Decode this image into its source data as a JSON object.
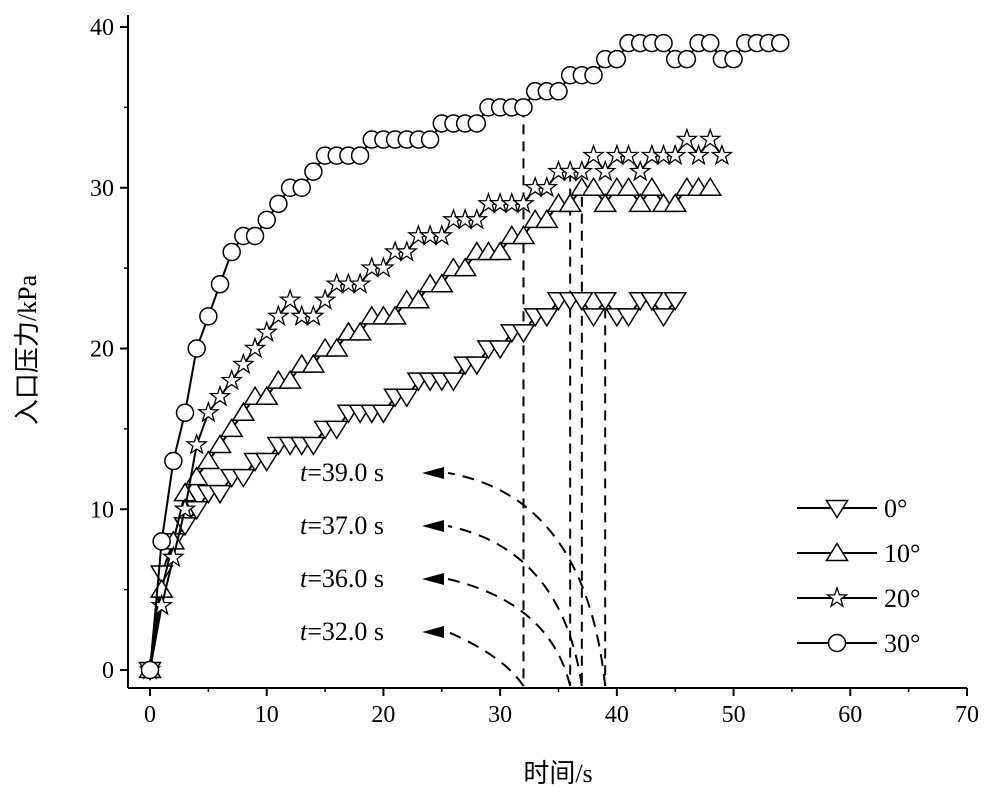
{
  "chart_data": {
    "type": "line",
    "xlabel": "时间/s",
    "ylabel": "入口压力/kPa",
    "xlim": [
      0,
      70
    ],
    "ylim": [
      0,
      40
    ],
    "xticks": [
      0,
      10,
      20,
      30,
      40,
      50,
      60,
      70
    ],
    "yticks": [
      0,
      10,
      20,
      30,
      40
    ],
    "grid": false,
    "legend_placement": "bottom-right",
    "series": [
      {
        "name": "0°",
        "marker": "triangle-down",
        "values": [
          0,
          6,
          8,
          9,
          10,
          11,
          11,
          12,
          12,
          13,
          13,
          14,
          14,
          14,
          14,
          15,
          15,
          16,
          16,
          16,
          16,
          17,
          17,
          18,
          18,
          18,
          18,
          19,
          19,
          20,
          20,
          21,
          21,
          22,
          22,
          23,
          23,
          23,
          22,
          23,
          22,
          22,
          23,
          23,
          22,
          23
        ]
      },
      {
        "name": "10°",
        "marker": "triangle-up",
        "values": [
          0,
          5,
          8,
          11,
          12,
          13,
          14,
          15,
          16,
          17,
          17,
          18,
          18,
          19,
          19,
          20,
          20,
          21,
          21,
          22,
          22,
          22,
          23,
          23,
          24,
          24,
          25,
          25,
          26,
          26,
          26,
          27,
          27,
          28,
          28,
          29,
          29,
          30,
          30,
          29,
          30,
          30,
          29,
          30,
          29,
          29,
          30,
          30,
          30
        ]
      },
      {
        "name": "20°",
        "marker": "star",
        "values": [
          0,
          4,
          7,
          10,
          14,
          16,
          17,
          18,
          19,
          20,
          21,
          22,
          23,
          22,
          22,
          23,
          24,
          24,
          24,
          25,
          25,
          26,
          26,
          27,
          27,
          27,
          28,
          28,
          28,
          29,
          29,
          29,
          29,
          30,
          30,
          31,
          31,
          31,
          32,
          31,
          32,
          32,
          31,
          32,
          32,
          32,
          33,
          32,
          33,
          32
        ]
      },
      {
        "name": "30°",
        "marker": "circle",
        "values": [
          0,
          8,
          13,
          16,
          20,
          22,
          24,
          26,
          27,
          27,
          28,
          29,
          30,
          30,
          31,
          32,
          32,
          32,
          32,
          33,
          33,
          33,
          33,
          33,
          33,
          34,
          34,
          34,
          34,
          35,
          35,
          35,
          35,
          36,
          36,
          36,
          37,
          37,
          37,
          38,
          38,
          39,
          39,
          39,
          39,
          38,
          38,
          39,
          39,
          38,
          38,
          39,
          39,
          39,
          39
        ]
      }
    ],
    "annotations": [
      {
        "label": "t=39.0 s",
        "t_italic": "t",
        "rest": "=39.0 s",
        "x": 39,
        "y_top": 22.5
      },
      {
        "label": "t=37.0 s",
        "t_italic": "t",
        "rest": "=37.0 s",
        "x": 37,
        "y_top": 30.5
      },
      {
        "label": "t=36.0 s",
        "t_italic": "t",
        "rest": "=36.0 s",
        "x": 36,
        "y_top": 31
      },
      {
        "label": "t=32.0 s",
        "t_italic": "t",
        "rest": "=32.0 s",
        "x": 32,
        "y_top": 35
      }
    ]
  }
}
